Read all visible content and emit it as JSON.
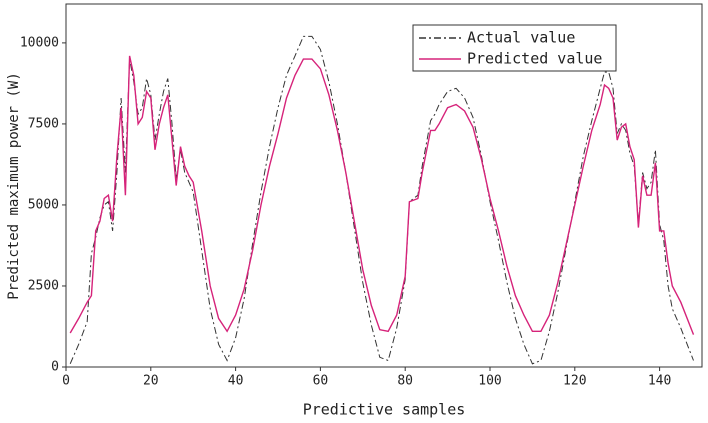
{
  "chart_data": {
    "type": "line",
    "x_label": "Predictive samples",
    "y_label": "Predicted maximum power (W)",
    "x": [
      1,
      3,
      5,
      6,
      7,
      8,
      9,
      10,
      11,
      12,
      13,
      14,
      15,
      16,
      17,
      18,
      19,
      20,
      21,
      22,
      23,
      24,
      25,
      26,
      27,
      28,
      29,
      30,
      32,
      34,
      36,
      38,
      40,
      42,
      44,
      46,
      48,
      50,
      52,
      54,
      56,
      58,
      60,
      62,
      64,
      66,
      68,
      70,
      72,
      74,
      76,
      78,
      80,
      81,
      83,
      84,
      86,
      87,
      88,
      90,
      92,
      94,
      96,
      98,
      100,
      102,
      104,
      106,
      108,
      110,
      112,
      114,
      116,
      118,
      120,
      122,
      124,
      126,
      127,
      128,
      129,
      130,
      131,
      132,
      133,
      134,
      135,
      136,
      137,
      138,
      139,
      140,
      141,
      142,
      143,
      145,
      148
    ],
    "series": [
      {
        "name": "Actual value",
        "color": "#333333",
        "dash": "dashdot",
        "values": [
          100,
          700,
          1400,
          3500,
          4000,
          4600,
          5000,
          5100,
          4200,
          6000,
          8300,
          6000,
          9500,
          8800,
          7800,
          8000,
          8900,
          8400,
          7000,
          7800,
          8500,
          8900,
          7500,
          5800,
          6700,
          6000,
          5700,
          5400,
          3600,
          1800,
          700,
          200,
          900,
          2100,
          3800,
          5400,
          6800,
          8000,
          9000,
          9600,
          10200,
          10200,
          9800,
          8800,
          7500,
          6000,
          4300,
          2600,
          1300,
          300,
          200,
          1200,
          2700,
          5100,
          5300,
          6200,
          7600,
          7800,
          8100,
          8500,
          8600,
          8300,
          7700,
          6500,
          5100,
          3900,
          2600,
          1500,
          700,
          100,
          200,
          1100,
          2300,
          3700,
          5100,
          6500,
          7600,
          8600,
          9100,
          9100,
          8600,
          7200,
          7500,
          7300,
          6600,
          6200,
          4400,
          6000,
          5500,
          5700,
          6700,
          4400,
          3900,
          2500,
          1800,
          1200,
          200
        ]
      },
      {
        "name": "Predicted value",
        "color": "#d6237a",
        "dash": "solid",
        "values": [
          1050,
          1500,
          2000,
          2200,
          4200,
          4500,
          5200,
          5300,
          4500,
          6500,
          8000,
          5300,
          9600,
          9000,
          7500,
          7700,
          8500,
          8300,
          6700,
          7500,
          8000,
          8400,
          7000,
          5600,
          6800,
          6200,
          5900,
          5700,
          4200,
          2500,
          1500,
          1100,
          1600,
          2400,
          3600,
          5000,
          6200,
          7200,
          8300,
          9000,
          9500,
          9500,
          9200,
          8400,
          7300,
          6000,
          4500,
          3000,
          1900,
          1150,
          1100,
          1600,
          2800,
          5100,
          5200,
          6000,
          7300,
          7300,
          7500,
          8000,
          8100,
          7900,
          7400,
          6400,
          5200,
          4200,
          3100,
          2200,
          1600,
          1100,
          1100,
          1600,
          2600,
          3800,
          5000,
          6200,
          7300,
          8100,
          8700,
          8600,
          8300,
          7000,
          7400,
          7500,
          6800,
          6400,
          4300,
          5900,
          5300,
          5300,
          6300,
          4200,
          4200,
          3200,
          2500,
          2000,
          1000
        ]
      }
    ],
    "xlim": [
      0,
      150
    ],
    "xticks": [
      0,
      20,
      40,
      60,
      80,
      100,
      120,
      140
    ],
    "ylim": [
      0,
      11200
    ],
    "yticks": [
      0,
      2500,
      5000,
      7500,
      10000
    ],
    "legend": "upper right"
  }
}
